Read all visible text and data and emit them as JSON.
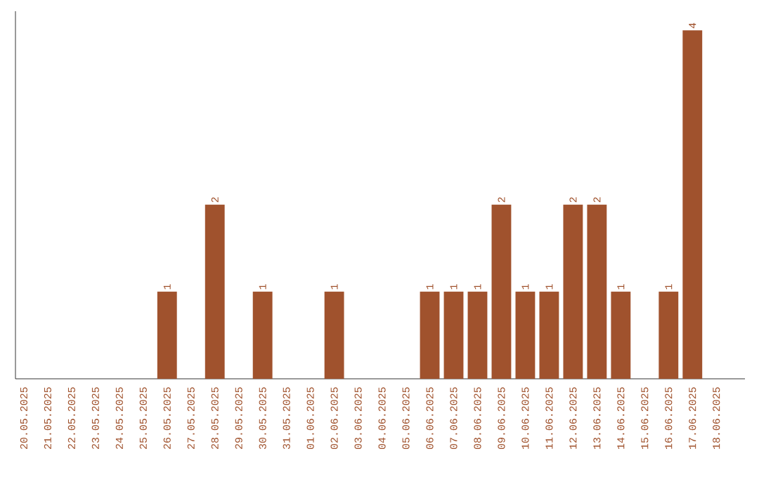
{
  "chart_data": {
    "type": "bar",
    "categories": [
      "20.05.2025",
      "21.05.2025",
      "22.05.2025",
      "23.05.2025",
      "24.05.2025",
      "25.05.2025",
      "26.05.2025",
      "27.05.2025",
      "28.05.2025",
      "29.05.2025",
      "30.05.2025",
      "31.05.2025",
      "01.06.2025",
      "02.06.2025",
      "03.06.2025",
      "04.06.2025",
      "05.06.2025",
      "06.06.2025",
      "07.06.2025",
      "08.06.2025",
      "09.06.2025",
      "10.06.2025",
      "11.06.2025",
      "12.06.2025",
      "13.06.2025",
      "14.06.2025",
      "15.06.2025",
      "16.06.2025",
      "17.06.2025",
      "18.06.2025"
    ],
    "values": [
      0,
      0,
      0,
      0,
      0,
      0,
      1,
      0,
      2,
      0,
      1,
      0,
      0,
      1,
      0,
      0,
      0,
      1,
      1,
      1,
      2,
      1,
      1,
      2,
      2,
      1,
      0,
      1,
      4,
      0
    ],
    "value_labels": [
      null,
      null,
      null,
      null,
      null,
      null,
      "1",
      null,
      "2",
      null,
      "1",
      null,
      null,
      "1",
      null,
      null,
      null,
      "1",
      "1",
      "1",
      "2",
      "1",
      "1",
      "2",
      "2",
      "1",
      null,
      "1",
      "4",
      null
    ],
    "color": "#a0522d"
  }
}
